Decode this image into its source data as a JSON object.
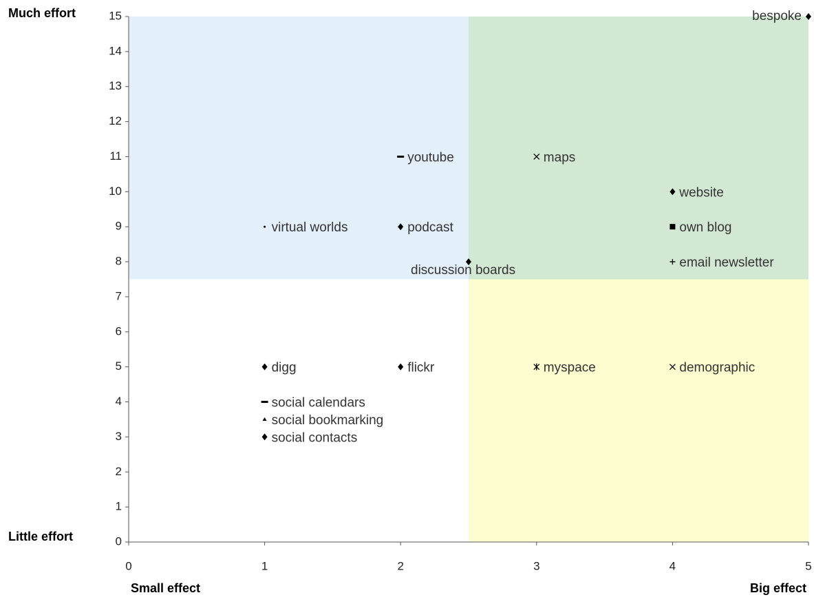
{
  "chart_data": {
    "type": "scatter",
    "xlim": [
      0,
      5
    ],
    "ylim": [
      0,
      15
    ],
    "xticks": [
      0,
      1,
      2,
      3,
      4,
      5
    ],
    "yticks": [
      0,
      1,
      2,
      3,
      4,
      5,
      6,
      7,
      8,
      9,
      10,
      11,
      12,
      13,
      14,
      15
    ],
    "annotations": {
      "y_top": "Much effort",
      "y_bottom": "Little effort",
      "x_left": "Small effect",
      "x_right": "Big effect"
    },
    "quadrants": [
      {
        "xlim": [
          0,
          2.5
        ],
        "ylim": [
          7.5,
          15
        ],
        "color": "#e3f0fc"
      },
      {
        "xlim": [
          2.5,
          5
        ],
        "ylim": [
          7.5,
          15
        ],
        "color": "#d2e8d2"
      },
      {
        "xlim": [
          2.5,
          5
        ],
        "ylim": [
          0,
          7.5
        ],
        "color": "#fdfdcf"
      }
    ],
    "marker_color": "#000000",
    "points": [
      {
        "label": "bespoke",
        "x": 5,
        "y": 15,
        "marker": "diamond",
        "label_position": "left"
      },
      {
        "label": "youtube",
        "x": 2,
        "y": 11,
        "marker": "dash"
      },
      {
        "label": "maps",
        "x": 3,
        "y": 11,
        "marker": "x"
      },
      {
        "label": "website",
        "x": 4,
        "y": 10,
        "marker": "diamond"
      },
      {
        "label": "virtual worlds",
        "x": 1,
        "y": 9,
        "marker": "dot"
      },
      {
        "label": "podcast",
        "x": 2,
        "y": 9,
        "marker": "diamond"
      },
      {
        "label": "own blog",
        "x": 4,
        "y": 9,
        "marker": "square"
      },
      {
        "label": "discussion boards",
        "x": 2.5,
        "y": 8,
        "marker": "diamond",
        "label_position": "below"
      },
      {
        "label": "email newsletter",
        "x": 4,
        "y": 8,
        "marker": "plus"
      },
      {
        "label": "digg",
        "x": 1,
        "y": 5,
        "marker": "diamond"
      },
      {
        "label": "flickr",
        "x": 2,
        "y": 5,
        "marker": "diamond"
      },
      {
        "label": "myspace",
        "x": 3,
        "y": 5,
        "marker": "asterisk"
      },
      {
        "label": "demographic",
        "x": 4,
        "y": 5,
        "marker": "x"
      },
      {
        "label": "social calendars",
        "x": 1,
        "y": 4,
        "marker": "dash"
      },
      {
        "label": "social bookmarking",
        "x": 1,
        "y": 3.5,
        "marker": "triangle"
      },
      {
        "label": "social contacts",
        "x": 1,
        "y": 3,
        "marker": "diamond"
      }
    ]
  }
}
